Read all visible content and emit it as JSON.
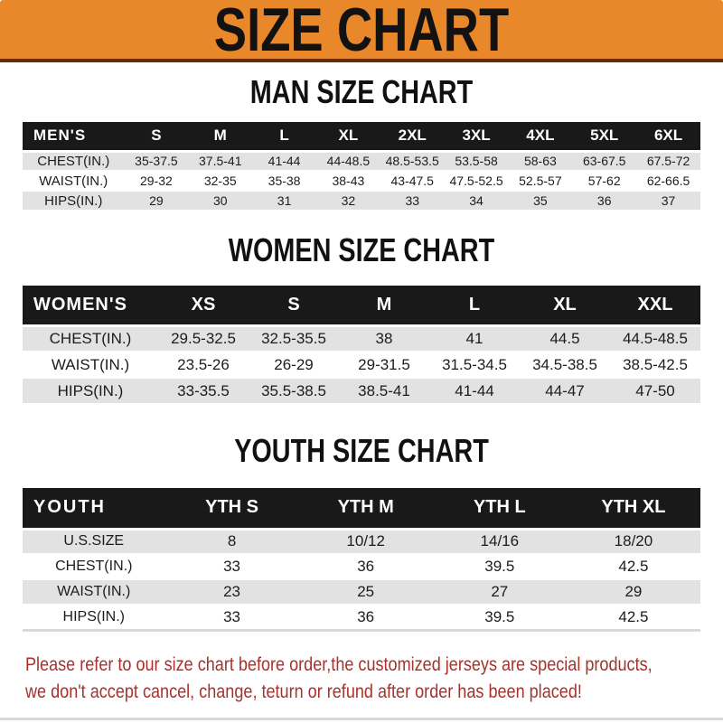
{
  "banner": {
    "title": "SIZE CHART",
    "bg_color": "#E8882B",
    "title_color": "#121212"
  },
  "colors": {
    "table_header_bg": "#191919",
    "table_header_text": "#FFFFFF",
    "row_stripe_gray": "#E2E2E2",
    "footer_text": "#A8322B"
  },
  "sections": [
    {
      "heading": "MAN SIZE CHART",
      "table": {
        "header_label": "MEN'S",
        "columns": [
          "S",
          "M",
          "L",
          "XL",
          "2XL",
          "3XL",
          "4XL",
          "5XL",
          "6XL"
        ],
        "rows": [
          {
            "label": "CHEST(IN.)",
            "values": [
              "35-37.5",
              "37.5-41",
              "41-44",
              "44-48.5",
              "48.5-53.5",
              "53.5-58",
              "58-63",
              "63-67.5",
              "67.5-72"
            ]
          },
          {
            "label": "WAIST(IN.)",
            "values": [
              "29-32",
              "32-35",
              "35-38",
              "38-43",
              "43-47.5",
              "47.5-52.5",
              "52.5-57",
              "57-62",
              "62-66.5"
            ]
          },
          {
            "label": "HIPS(IN.)",
            "values": [
              "29",
              "30",
              "31",
              "32",
              "33",
              "34",
              "35",
              "36",
              "37"
            ]
          }
        ]
      }
    },
    {
      "heading": "WOMEN SIZE CHART",
      "table": {
        "header_label": "WOMEN'S",
        "columns": [
          "XS",
          "S",
          "M",
          "L",
          "XL",
          "XXL"
        ],
        "rows": [
          {
            "label": "CHEST(IN.)",
            "values": [
              "29.5-32.5",
              "32.5-35.5",
              "38",
              "41",
              "44.5",
              "44.5-48.5"
            ]
          },
          {
            "label": "WAIST(IN.)",
            "values": [
              "23.5-26",
              "26-29",
              "29-31.5",
              "31.5-34.5",
              "34.5-38.5",
              "38.5-42.5"
            ]
          },
          {
            "label": "HIPS(IN.)",
            "values": [
              "33-35.5",
              "35.5-38.5",
              "38.5-41",
              "41-44",
              "44-47",
              "47-50"
            ]
          }
        ]
      }
    },
    {
      "heading": "YOUTH SIZE CHART",
      "table": {
        "header_label": "YOUTH",
        "columns": [
          "YTH S",
          "YTH M",
          "YTH L",
          "YTH XL"
        ],
        "rows": [
          {
            "label": "U.S.SIZE",
            "values": [
              "8",
              "10/12",
              "14/16",
              "18/20"
            ]
          },
          {
            "label": "CHEST(IN.)",
            "values": [
              "33",
              "36",
              "39.5",
              "42.5"
            ]
          },
          {
            "label": "WAIST(IN.)",
            "values": [
              "23",
              "25",
              "27",
              "29"
            ]
          },
          {
            "label": "HIPS(IN.)",
            "values": [
              "33",
              "36",
              "39.5",
              "42.5"
            ]
          }
        ]
      }
    }
  ],
  "footer": {
    "line1": "Please refer to our size chart before order,the customized jerseys are special products,",
    "line2": "we don't accept cancel, change, teturn or refund after order has been placed!"
  }
}
